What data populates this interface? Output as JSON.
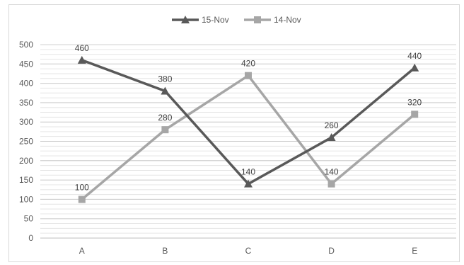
{
  "chart_data": {
    "type": "line",
    "title": "",
    "xlabel": "",
    "ylabel": "",
    "categories": [
      "A",
      "B",
      "C",
      "D",
      "E"
    ],
    "ylim": [
      0,
      500
    ],
    "yticks": [
      0,
      50,
      100,
      150,
      200,
      250,
      300,
      350,
      400,
      450,
      500
    ],
    "grid": true,
    "legend_position": "top",
    "series": [
      {
        "name": "15-Nov",
        "values": [
          460,
          380,
          140,
          260,
          440
        ],
        "color": "#595959",
        "marker": "triangle"
      },
      {
        "name": "14-Nov",
        "values": [
          100,
          280,
          420,
          140,
          320
        ],
        "color": "#a6a6a6",
        "marker": "square"
      }
    ]
  }
}
